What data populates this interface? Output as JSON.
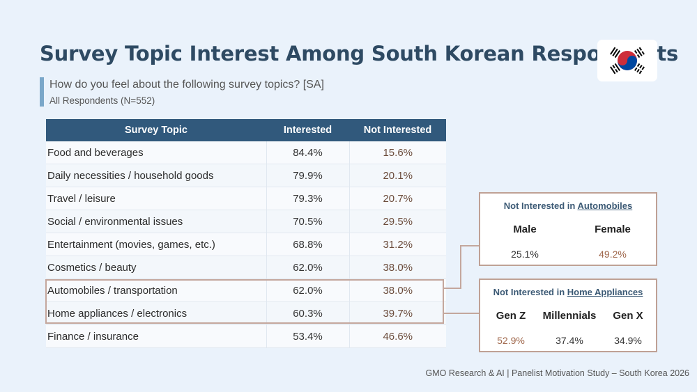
{
  "title": "Survey Topic Interest Among South Korean Respondents",
  "question": "How do you feel about the following survey topics? [SA]",
  "respondents": "All Respondents (N=552)",
  "flag_icon": "south-korea-flag-icon",
  "chart_data": {
    "type": "table",
    "columns": [
      "Survey Topic",
      "Interested",
      "Not Interested"
    ],
    "rows": [
      {
        "topic": "Food and beverages",
        "interested": "84.4%",
        "not_interested": "15.6%"
      },
      {
        "topic": "Daily necessities / household goods",
        "interested": "79.9%",
        "not_interested": "20.1%"
      },
      {
        "topic": "Travel / leisure",
        "interested": "79.3%",
        "not_interested": "20.7%"
      },
      {
        "topic": "Social / environmental issues",
        "interested": "70.5%",
        "not_interested": "29.5%"
      },
      {
        "topic": "Entertainment (movies, games, etc.)",
        "interested": "68.8%",
        "not_interested": "31.2%"
      },
      {
        "topic": "Cosmetics / beauty",
        "interested": "62.0%",
        "not_interested": "38.0%"
      },
      {
        "topic": "Automobiles / transportation",
        "interested": "62.0%",
        "not_interested": "38.0%"
      },
      {
        "topic": "Home appliances / electronics",
        "interested": "60.3%",
        "not_interested": "39.7%"
      },
      {
        "topic": "Finance / insurance",
        "interested": "53.4%",
        "not_interested": "46.6%"
      }
    ],
    "highlighted_rows": [
      "Automobiles / transportation",
      "Home appliances / electronics"
    ],
    "breakdowns": [
      {
        "title_prefix": "Not Interested in ",
        "title_topic": "Automobiles",
        "groups": [
          "Male",
          "Female"
        ],
        "values": [
          "25.1%",
          "49.2%"
        ],
        "highlight_group": "Female"
      },
      {
        "title_prefix": "Not Interested in ",
        "title_topic": "Home Appliances",
        "groups": [
          "Gen Z",
          "Millennials",
          "Gen X"
        ],
        "values": [
          "52.9%",
          "37.4%",
          "34.9%"
        ],
        "highlight_group": "Gen Z"
      }
    ]
  },
  "colors": {
    "title": "#2e4a63",
    "header_bg": "#31597c",
    "accent_bar": "#7aa7c9",
    "highlight_border": "#c4a79d",
    "accent_value": "#a0684c",
    "background": "#eaf2fb"
  },
  "footer": "GMO Research & AI | Panelist Motivation Study – South Korea 2026"
}
